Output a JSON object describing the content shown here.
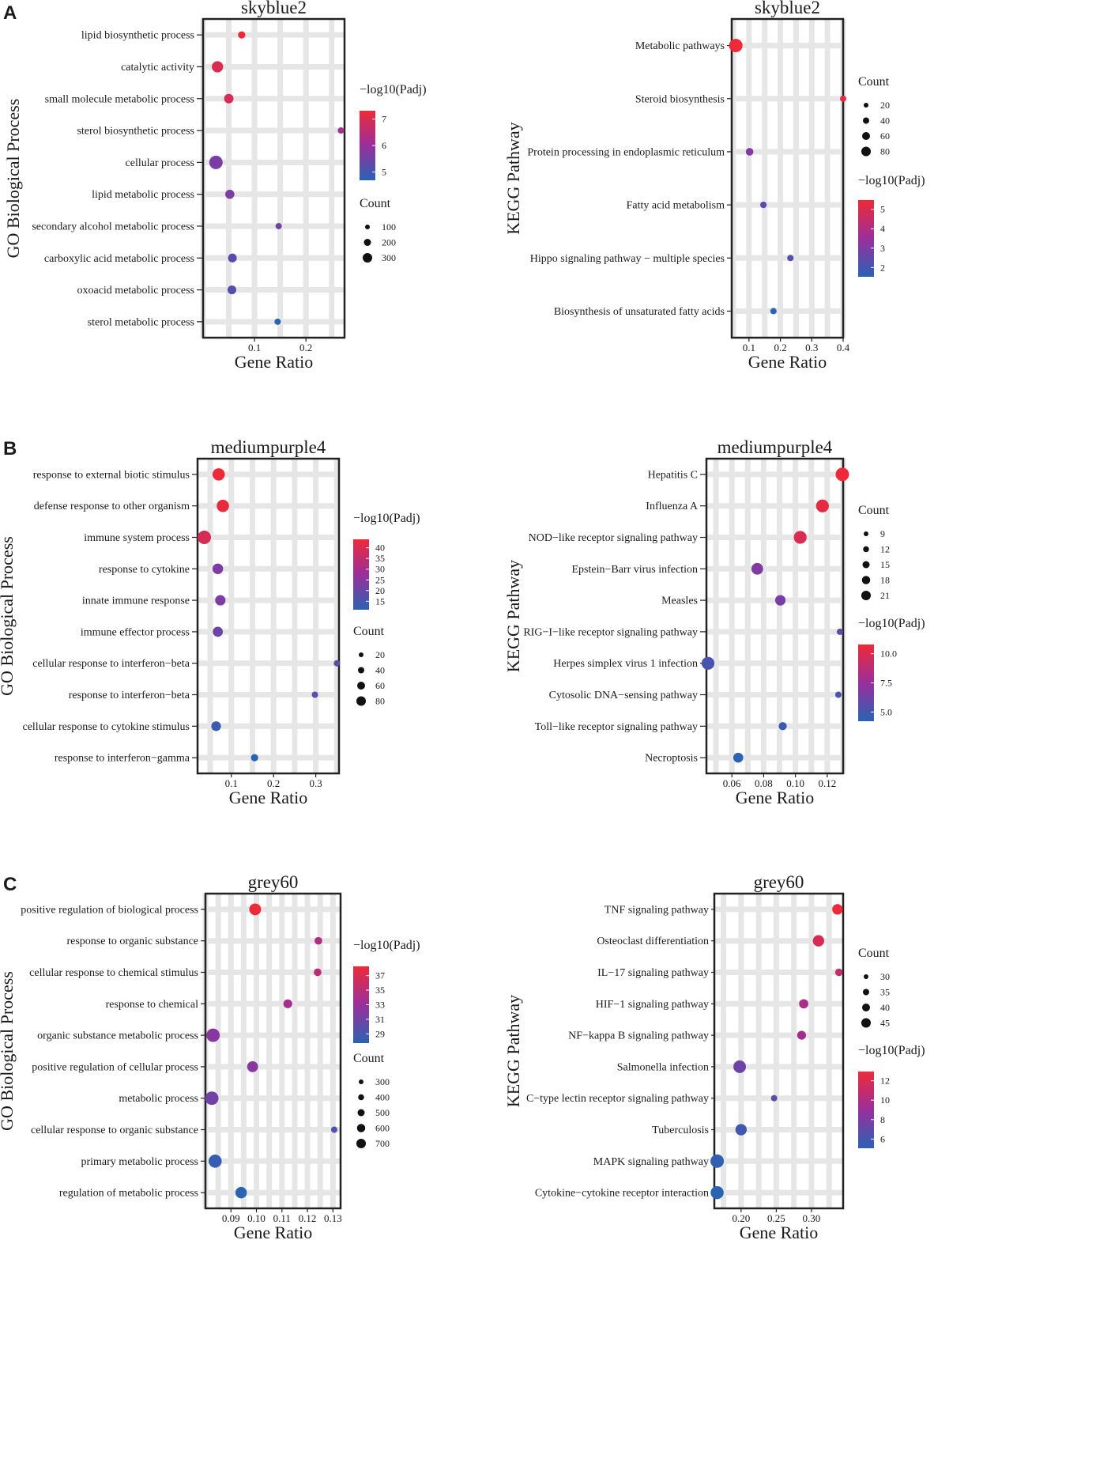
{
  "legend_labels": {
    "color": "−log10(Padj)",
    "size": "Count"
  },
  "colors": {
    "high": "#ee2a38",
    "mid": "#9a2f9c",
    "low": "#2a62b4",
    "grid": "#e6e6e6",
    "frame": "#222222"
  },
  "chart_data": [
    {
      "id": "A-GO",
      "panel": "A",
      "type": "scatter",
      "title": "skyblue2",
      "xlabel": "Gene Ratio",
      "ylabel": "GO Biological Process",
      "xlim": [
        0.0,
        0.275
      ],
      "xticks": [
        0.1,
        0.2
      ],
      "xticklabels": [
        "0.1",
        "0.2"
      ],
      "color_ticks": [
        "7",
        "6",
        "5"
      ],
      "size_ticks": [
        "100",
        "200",
        "300"
      ],
      "points": [
        {
          "term": "lipid biosynthetic process",
          "gene_ratio": 0.075,
          "count": 120,
          "neglog10padj": 8.0
        },
        {
          "term": "catalytic activity",
          "gene_ratio": 0.028,
          "count": 250,
          "neglog10padj": 7.6
        },
        {
          "term": "small molecule metabolic process",
          "gene_ratio": 0.05,
          "count": 190,
          "neglog10padj": 7.5
        },
        {
          "term": "sterol biosynthetic process",
          "gene_ratio": 0.268,
          "count": 90,
          "neglog10padj": 6.6
        },
        {
          "term": "cellular process",
          "gene_ratio": 0.025,
          "count": 320,
          "neglog10padj": 5.9
        },
        {
          "term": "lipid metabolic process",
          "gene_ratio": 0.052,
          "count": 180,
          "neglog10padj": 5.9
        },
        {
          "term": "secondary alcohol metabolic process",
          "gene_ratio": 0.147,
          "count": 90,
          "neglog10padj": 5.7
        },
        {
          "term": "carboxylic acid metabolic process",
          "gene_ratio": 0.057,
          "count": 170,
          "neglog10padj": 5.4
        },
        {
          "term": "oxoacid metabolic process",
          "gene_ratio": 0.056,
          "count": 170,
          "neglog10padj": 5.3
        },
        {
          "term": "sterol metabolic process",
          "gene_ratio": 0.145,
          "count": 90,
          "neglog10padj": 4.7
        }
      ]
    },
    {
      "id": "A-KEGG",
      "panel": "A",
      "type": "scatter",
      "title": "skyblue2",
      "xlabel": "Gene Ratio",
      "ylabel": "KEGG Pathway",
      "xlim": [
        0.045,
        0.4
      ],
      "xticks": [
        0.1,
        0.2,
        0.3,
        0.4
      ],
      "xticklabels": [
        "0.1",
        "0.2",
        "0.3",
        "0.4"
      ],
      "size_ticks": [
        "20",
        "40",
        "60",
        "80"
      ],
      "color_ticks": [
        "5",
        "4",
        "3",
        "2"
      ],
      "points": [
        {
          "term": "Metabolic pathways",
          "gene_ratio": 0.058,
          "count": 90,
          "neglog10padj": 5.3
        },
        {
          "term": "Steroid biosynthesis",
          "gene_ratio": 0.4,
          "count": 14,
          "neglog10padj": 5.1
        },
        {
          "term": "Protein processing in endoplasmic reticulum",
          "gene_ratio": 0.102,
          "count": 28,
          "neglog10padj": 2.9
        },
        {
          "term": "Fatty acid metabolism",
          "gene_ratio": 0.146,
          "count": 16,
          "neglog10padj": 2.4
        },
        {
          "term": "Hippo signaling pathway − multiple species",
          "gene_ratio": 0.232,
          "count": 15,
          "neglog10padj": 2.2
        },
        {
          "term": "Biosynthesis of unsaturated fatty acids",
          "gene_ratio": 0.178,
          "count": 14,
          "neglog10padj": 1.5
        }
      ]
    },
    {
      "id": "B-GO",
      "panel": "B",
      "type": "scatter",
      "title": "mediumpurple4",
      "xlabel": "Gene Ratio",
      "ylabel": "GO Biological Process",
      "xlim": [
        0.02,
        0.355
      ],
      "xticks": [
        0.1,
        0.2,
        0.3
      ],
      "xticklabels": [
        "0.1",
        "0.2",
        "0.3"
      ],
      "color_ticks": [
        "40",
        "35",
        "30",
        "25",
        "20",
        "15"
      ],
      "size_ticks": [
        "20",
        "40",
        "60",
        "80"
      ],
      "points": [
        {
          "term": "response to external biotic stimulus",
          "gene_ratio": 0.07,
          "count": 75,
          "neglog10padj": 41
        },
        {
          "term": "defense response to other organism",
          "gene_ratio": 0.08,
          "count": 75,
          "neglog10padj": 40
        },
        {
          "term": "immune system process",
          "gene_ratio": 0.036,
          "count": 85,
          "neglog10padj": 37
        },
        {
          "term": "response to cytokine",
          "gene_ratio": 0.068,
          "count": 60,
          "neglog10padj": 24
        },
        {
          "term": "innate immune response",
          "gene_ratio": 0.074,
          "count": 58,
          "neglog10padj": 24
        },
        {
          "term": "immune effector process",
          "gene_ratio": 0.068,
          "count": 55,
          "neglog10padj": 22
        },
        {
          "term": "cellular response to interferon−beta",
          "gene_ratio": 0.35,
          "count": 22,
          "neglog10padj": 20
        },
        {
          "term": "response to interferon−beta",
          "gene_ratio": 0.298,
          "count": 22,
          "neglog10padj": 20
        },
        {
          "term": "cellular response to cytokine stimulus",
          "gene_ratio": 0.064,
          "count": 52,
          "neglog10padj": 16
        },
        {
          "term": "response to interferon−gamma",
          "gene_ratio": 0.155,
          "count": 30,
          "neglog10padj": 14
        }
      ]
    },
    {
      "id": "B-KEGG",
      "panel": "B",
      "type": "scatter",
      "title": "mediumpurple4",
      "xlabel": "Gene Ratio",
      "ylabel": "KEGG Pathway",
      "xlim": [
        0.044,
        0.13
      ],
      "xticks": [
        0.06,
        0.08,
        0.1,
        0.12
      ],
      "xticklabels": [
        "0.06",
        "0.08",
        "0.10",
        "0.12"
      ],
      "size_ticks": [
        "9",
        "12",
        "15",
        "18",
        "21"
      ],
      "color_ticks": [
        "10.0",
        "7.5",
        "5.0"
      ],
      "points": [
        {
          "term": "Hepatitis C",
          "gene_ratio": 0.1295,
          "count": 22,
          "neglog10padj": 12.0
        },
        {
          "term": "Influenza A",
          "gene_ratio": 0.117,
          "count": 21,
          "neglog10padj": 11.5
        },
        {
          "term": "NOD−like receptor signaling pathway",
          "gene_ratio": 0.103,
          "count": 21,
          "neglog10padj": 11.0
        },
        {
          "term": "Epstein−Barr virus infection",
          "gene_ratio": 0.076,
          "count": 19,
          "neglog10padj": 6.8
        },
        {
          "term": "Measles",
          "gene_ratio": 0.0905,
          "count": 17,
          "neglog10padj": 6.5
        },
        {
          "term": "RIG−I−like receptor signaling pathway",
          "gene_ratio": 0.128,
          "count": 10,
          "neglog10padj": 5.6
        },
        {
          "term": "Herpes simplex virus 1 infection",
          "gene_ratio": 0.045,
          "count": 21,
          "neglog10padj": 4.8
        },
        {
          "term": "Cytosolic DNA−sensing pathway",
          "gene_ratio": 0.127,
          "count": 10,
          "neglog10padj": 4.8
        },
        {
          "term": "Toll−like receptor signaling pathway",
          "gene_ratio": 0.092,
          "count": 13,
          "neglog10padj": 4.2
        },
        {
          "term": "Necroptosis",
          "gene_ratio": 0.064,
          "count": 16,
          "neglog10padj": 3.6
        }
      ]
    },
    {
      "id": "C-GO",
      "panel": "C",
      "type": "scatter",
      "title": "grey60",
      "xlabel": "Gene Ratio",
      "ylabel": "GO Biological Process",
      "xlim": [
        0.08,
        0.133
      ],
      "xticks": [
        0.09,
        0.1,
        0.11,
        0.12,
        0.13
      ],
      "xticklabels": [
        "0.09",
        "0.10",
        "0.11",
        "0.12",
        "0.13"
      ],
      "color_ticks": [
        "37",
        "35",
        "33",
        "31",
        "29"
      ],
      "size_ticks": [
        "300",
        "400",
        "500",
        "600",
        "700"
      ],
      "points": [
        {
          "term": "positive regulation of biological process",
          "gene_ratio": 0.0995,
          "count": 620,
          "neglog10padj": 38.5
        },
        {
          "term": "response to organic substance",
          "gene_ratio": 0.1243,
          "count": 380,
          "neglog10padj": 35.0
        },
        {
          "term": "cellular response to chemical stimulus",
          "gene_ratio": 0.124,
          "count": 380,
          "neglog10padj": 35.5
        },
        {
          "term": "response to chemical",
          "gene_ratio": 0.1123,
          "count": 450,
          "neglog10padj": 34.5
        },
        {
          "term": "organic substance metabolic process",
          "gene_ratio": 0.083,
          "count": 720,
          "neglog10padj": 33.0
        },
        {
          "term": "positive regulation of cellular process",
          "gene_ratio": 0.0985,
          "count": 570,
          "neglog10padj": 33.0
        },
        {
          "term": "metabolic process",
          "gene_ratio": 0.0825,
          "count": 720,
          "neglog10padj": 32.0
        },
        {
          "term": "cellular response to organic substance",
          "gene_ratio": 0.1305,
          "count": 300,
          "neglog10padj": 30.5
        },
        {
          "term": "primary metabolic process",
          "gene_ratio": 0.0838,
          "count": 700,
          "neglog10padj": 29.5
        },
        {
          "term": "regulation of metabolic process",
          "gene_ratio": 0.094,
          "count": 600,
          "neglog10padj": 29.0
        }
      ]
    },
    {
      "id": "C-KEGG",
      "panel": "C",
      "type": "scatter",
      "title": "grey60",
      "xlabel": "Gene Ratio",
      "ylabel": "KEGG Pathway",
      "xlim": [
        0.162,
        0.345
      ],
      "xticks": [
        0.2,
        0.25,
        0.3
      ],
      "xticklabels": [
        "0.20",
        "0.25",
        "0.30"
      ],
      "size_ticks": [
        "30",
        "35",
        "40",
        "45"
      ],
      "color_ticks": [
        "12",
        "10",
        "8",
        "6"
      ],
      "points": [
        {
          "term": "TNF signaling pathway",
          "gene_ratio": 0.337,
          "count": 40,
          "neglog10padj": 12.5
        },
        {
          "term": "Osteoclast differentiation",
          "gene_ratio": 0.31,
          "count": 42,
          "neglog10padj": 11.5
        },
        {
          "term": "IL−17 signaling pathway",
          "gene_ratio": 0.339,
          "count": 33,
          "neglog10padj": 10.5
        },
        {
          "term": "HIF−1 signaling pathway",
          "gene_ratio": 0.289,
          "count": 37,
          "neglog10padj": 9.5
        },
        {
          "term": "NF−kappa B signaling pathway",
          "gene_ratio": 0.286,
          "count": 36,
          "neglog10padj": 9.2
        },
        {
          "term": "Salmonella infection",
          "gene_ratio": 0.198,
          "count": 45,
          "neglog10padj": 7.2
        },
        {
          "term": "C−type lectin receptor signaling pathway",
          "gene_ratio": 0.247,
          "count": 30,
          "neglog10padj": 6.6
        },
        {
          "term": "Tuberculosis",
          "gene_ratio": 0.2,
          "count": 42,
          "neglog10padj": 5.8
        },
        {
          "term": "MAPK signaling pathway",
          "gene_ratio": 0.166,
          "count": 47,
          "neglog10padj": 5.2
        },
        {
          "term": "Cytokine−cytokine receptor interaction",
          "gene_ratio": 0.166,
          "count": 46,
          "neglog10padj": 5.0
        }
      ]
    }
  ]
}
